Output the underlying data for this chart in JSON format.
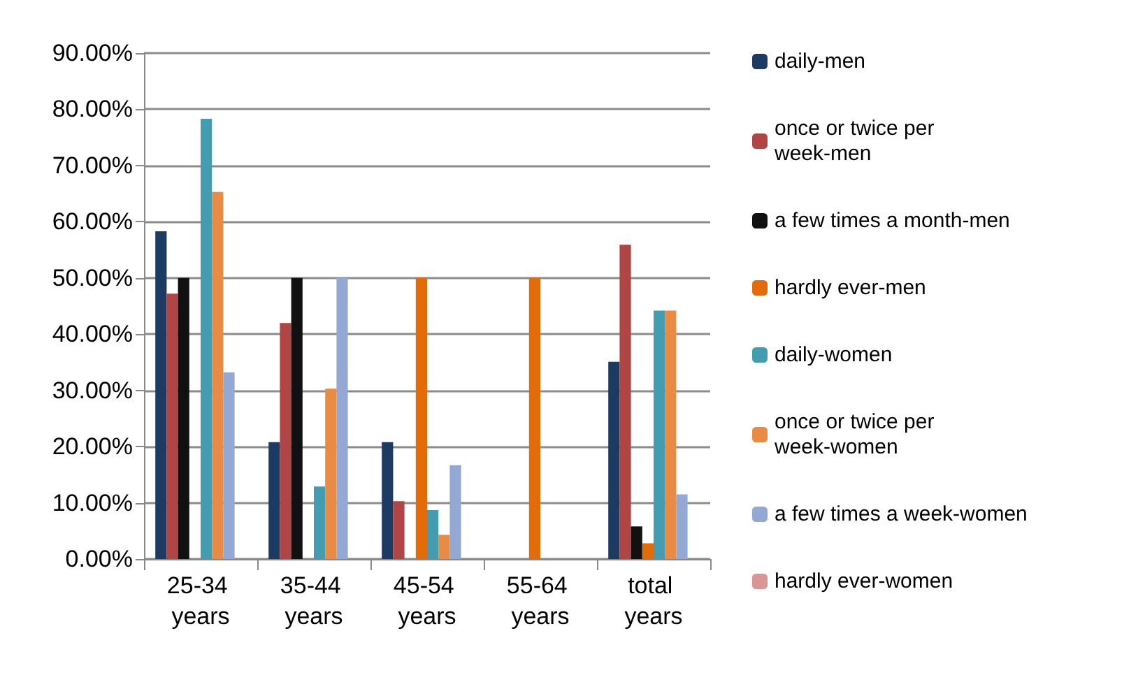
{
  "chart_data": {
    "type": "bar",
    "categories": [
      "25-34 years",
      "35-44 years",
      "45-54 years",
      "55-64 years",
      "total years"
    ],
    "series": [
      {
        "name": "daily-men",
        "color": "#1d3a63",
        "values": [
          58.3,
          20.8,
          20.8,
          0,
          35.1
        ]
      },
      {
        "name": "once or twice per week-men",
        "color": "#b04545",
        "values": [
          47.2,
          42,
          10.3,
          0,
          55.9
        ]
      },
      {
        "name": "a few times a month-men",
        "color": "#111111",
        "values": [
          50,
          50,
          0,
          0,
          5.8
        ]
      },
      {
        "name": "hardly ever-men",
        "color": "#e36c0a",
        "values": [
          0,
          0,
          50,
          50,
          2.8
        ]
      },
      {
        "name": "daily-women",
        "color": "#449cb0",
        "values": [
          78.3,
          12.9,
          8.7,
          0,
          44.2
        ]
      },
      {
        "name": "once or twice per week-women",
        "color": "#e88b44",
        "values": [
          65.3,
          30.3,
          4.3,
          0,
          44.2
        ]
      },
      {
        "name": "a few times a week-women",
        "color": "#93a9d4",
        "values": [
          33.2,
          50,
          16.7,
          0,
          11.5
        ]
      },
      {
        "name": "hardly ever-women",
        "color": "#d99694",
        "values": [
          0,
          0,
          0,
          0,
          0
        ]
      }
    ],
    "ylim": [
      0,
      90
    ],
    "yticks": [
      {
        "value": 0,
        "label": "0.00%"
      },
      {
        "value": 10,
        "label": "10.00%"
      },
      {
        "value": 20,
        "label": "20.00%"
      },
      {
        "value": 30,
        "label": "30.00%"
      },
      {
        "value": 40,
        "label": "40.00%"
      },
      {
        "value": 50,
        "label": "50.00%"
      },
      {
        "value": 60,
        "label": "60.00%"
      },
      {
        "value": 70,
        "label": "70.00%"
      },
      {
        "value": 80,
        "label": "80.00%"
      },
      {
        "value": 90,
        "label": "90.00%"
      }
    ],
    "grid": "y",
    "legend": "right"
  }
}
